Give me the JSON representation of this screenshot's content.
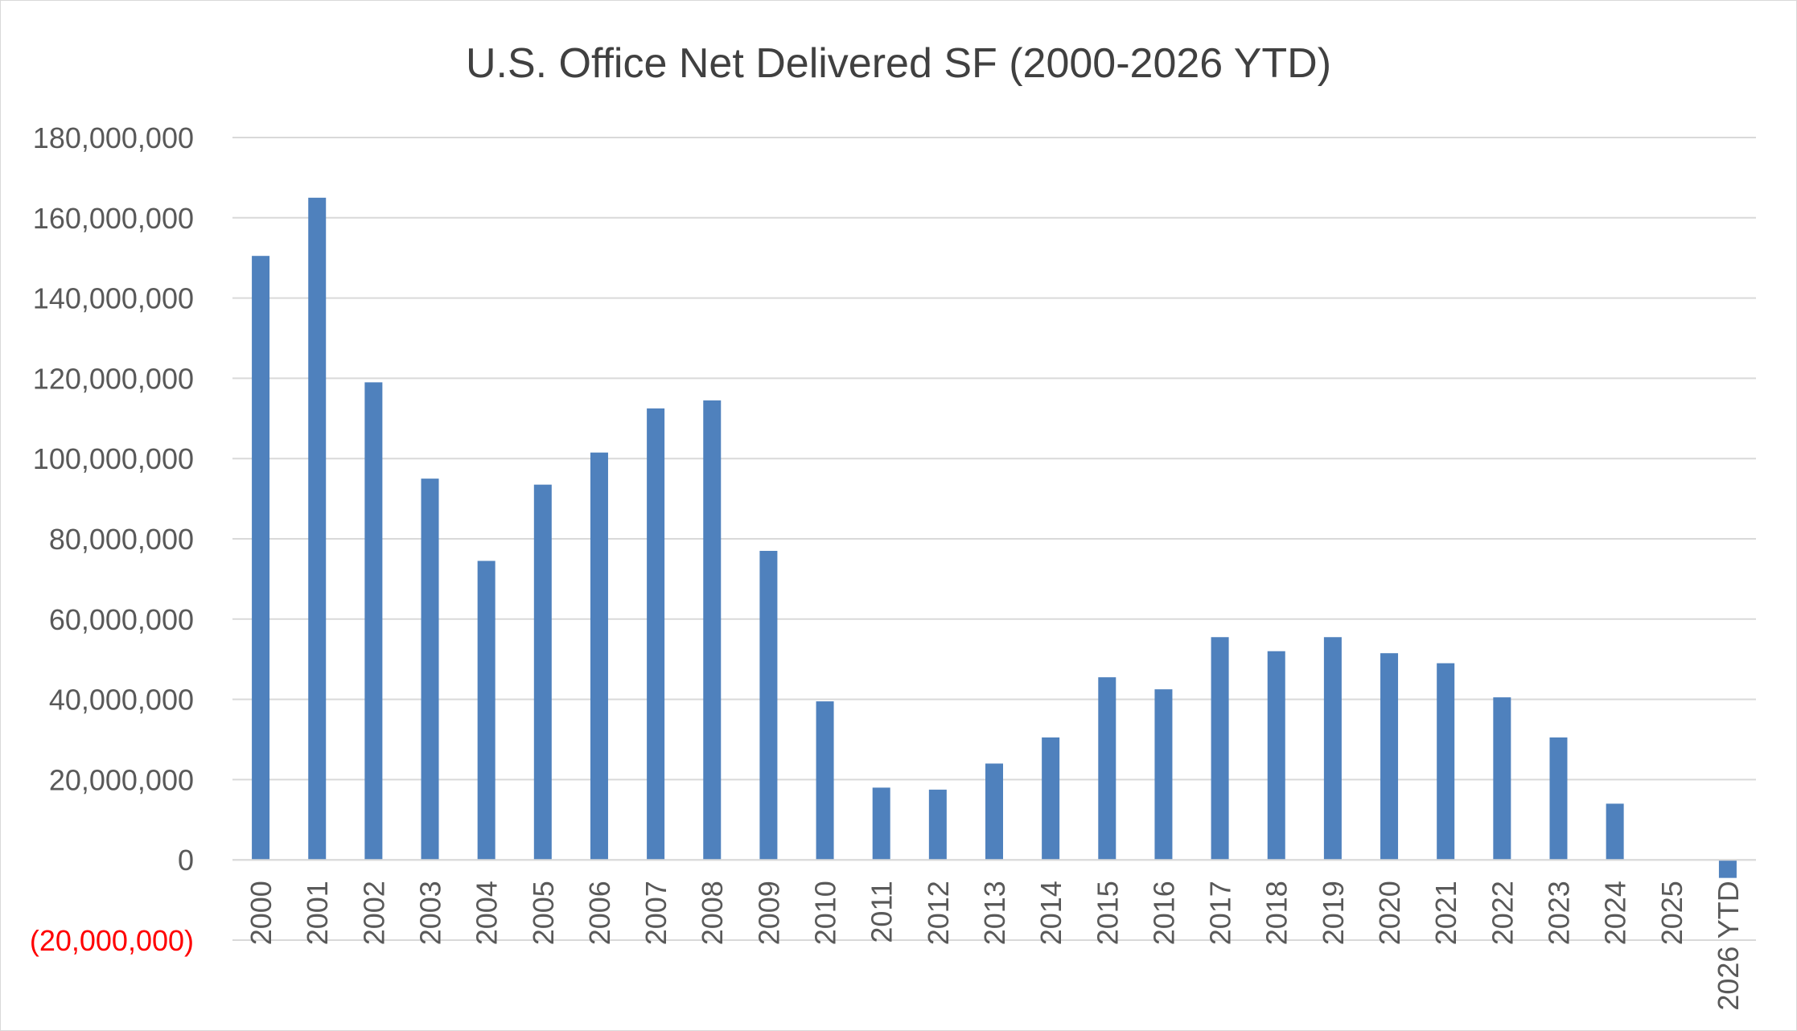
{
  "chart_data": {
    "type": "bar",
    "title": "U.S. Office Net Delivered SF (2000-2026 YTD)",
    "xlabel": "",
    "ylabel": "",
    "categories": [
      "2000",
      "2001",
      "2002",
      "2003",
      "2004",
      "2005",
      "2006",
      "2007",
      "2008",
      "2009",
      "2010",
      "2011",
      "2012",
      "2013",
      "2014",
      "2015",
      "2016",
      "2017",
      "2018",
      "2019",
      "2020",
      "2021",
      "2022",
      "2023",
      "2024",
      "2025",
      "2026 YTD"
    ],
    "values": [
      150500000,
      165000000,
      119000000,
      95000000,
      74500000,
      93500000,
      101500000,
      112500000,
      114500000,
      77000000,
      39500000,
      18000000,
      17500000,
      24000000,
      30500000,
      45500000,
      42500000,
      55500000,
      52000000,
      55500000,
      51500000,
      49000000,
      40500000,
      30500000,
      14000000,
      0,
      -4500000
    ],
    "ylim": [
      -20000000,
      180000000
    ],
    "y_ticks": [
      -20000000,
      0,
      20000000,
      40000000,
      60000000,
      80000000,
      100000000,
      120000000,
      140000000,
      160000000,
      180000000
    ],
    "y_tick_labels": [
      "(20,000,000)",
      "0",
      "20,000,000",
      "40,000,000",
      "60,000,000",
      "80,000,000",
      "100,000,000",
      "120,000,000",
      "140,000,000",
      "160,000,000",
      "180,000,000"
    ],
    "grid": true,
    "legend": "none",
    "colors": {
      "bar": "#4f81bd",
      "grid": "#d9d9d9",
      "text": "#595959",
      "title": "#404040",
      "negative_label": "#ff0000"
    }
  }
}
